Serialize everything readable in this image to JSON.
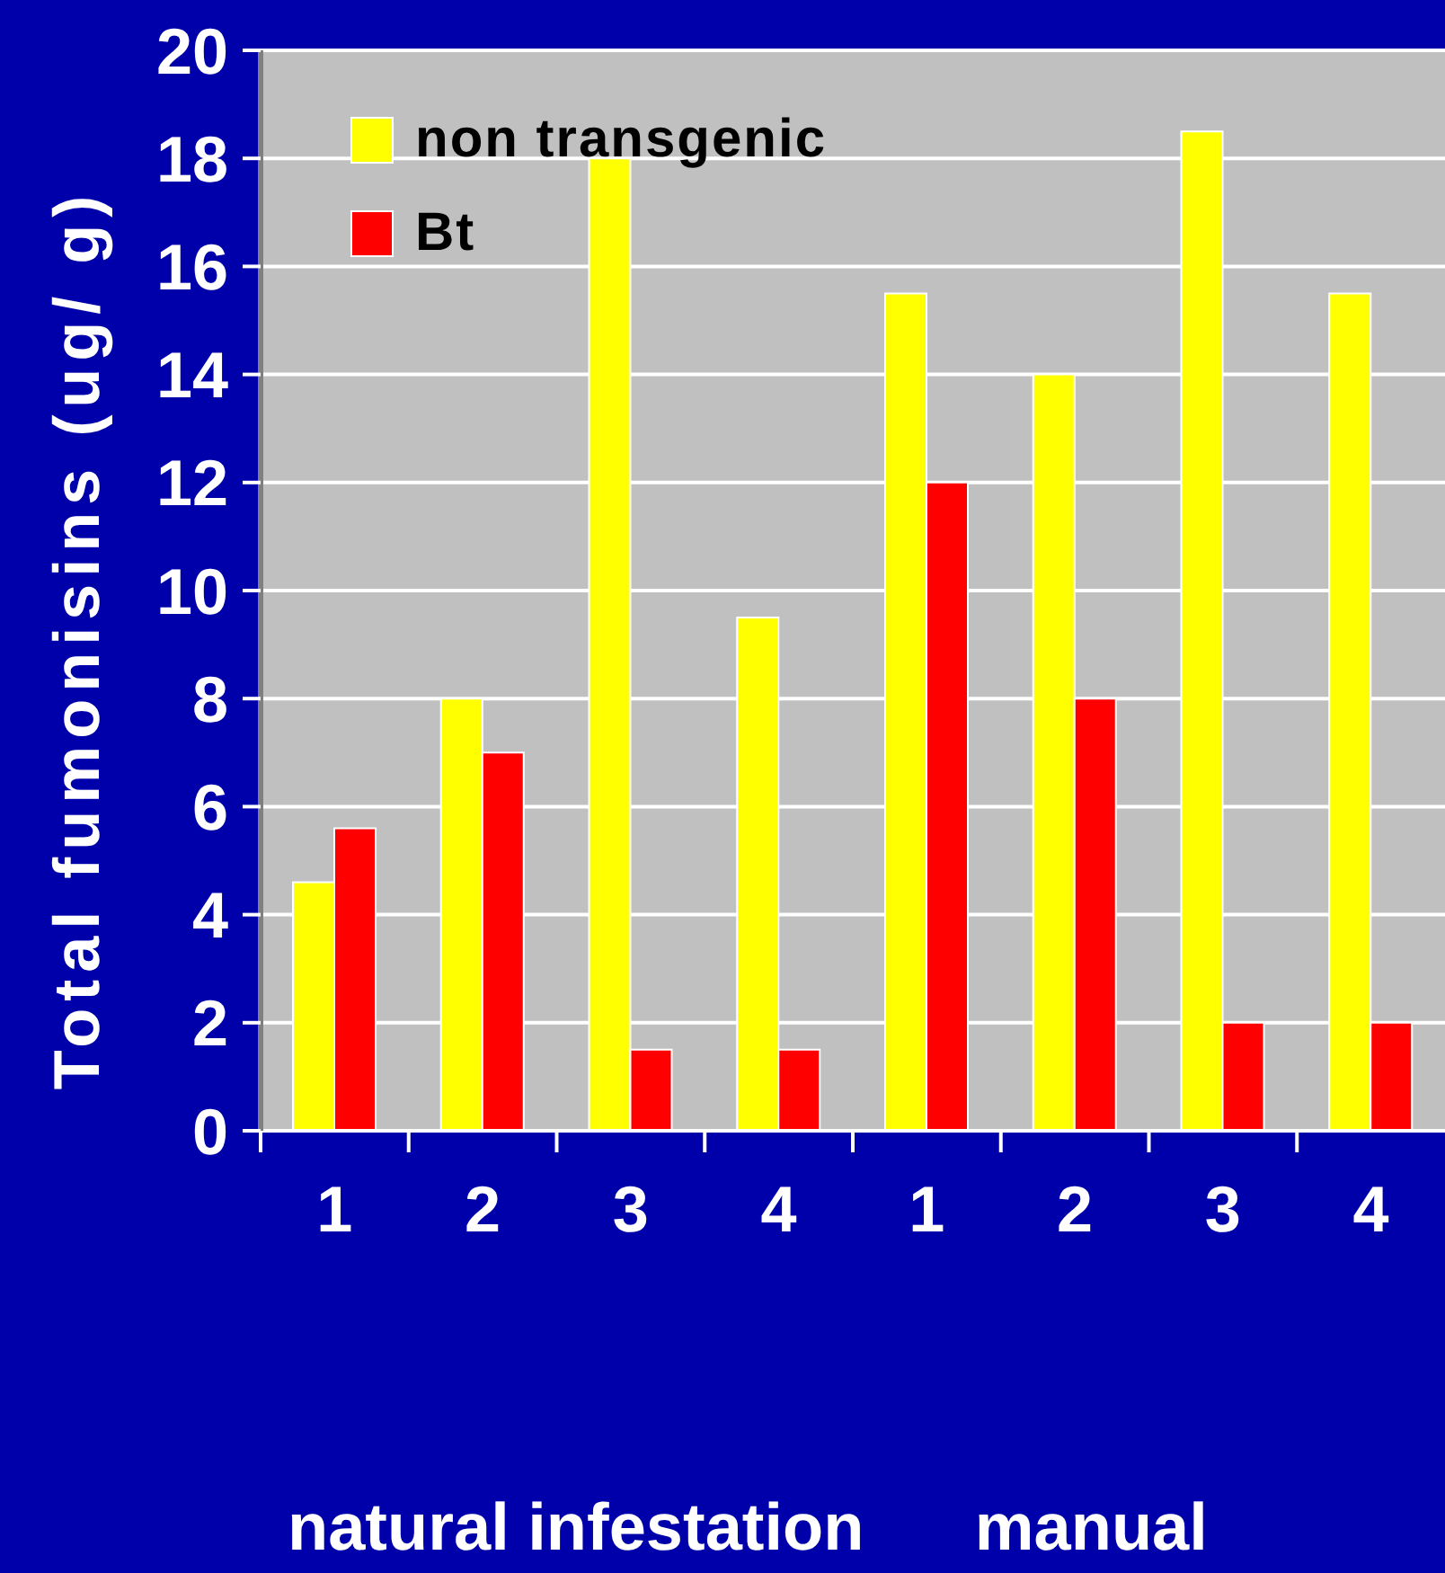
{
  "chart_data": {
    "type": "bar",
    "xlabel": "natural infestation      manual",
    "ylabel": "Total fumonisins (ug/ g)",
    "categories": [
      "1",
      "2",
      "3",
      "4",
      "1",
      "2",
      "3",
      "4"
    ],
    "series": [
      {
        "name": "non transgenic",
        "color": "#ffff00",
        "values": [
          4.6,
          8,
          18,
          9.5,
          15.5,
          14,
          18.5,
          15.5
        ]
      },
      {
        "name": "Bt",
        "color": "#ff0000",
        "values": [
          5.6,
          7,
          1.5,
          1.5,
          12,
          8,
          2,
          2
        ]
      }
    ],
    "ylim": [
      0,
      20
    ],
    "yticks": [
      0,
      2,
      4,
      6,
      8,
      10,
      12,
      14,
      16,
      18,
      20
    ],
    "grid": "y",
    "legend": "top left"
  }
}
